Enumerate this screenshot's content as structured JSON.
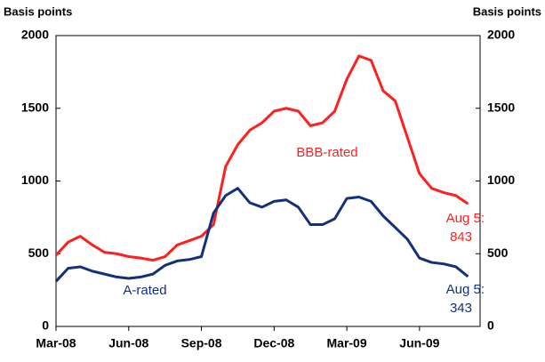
{
  "chart_data": {
    "type": "line",
    "y_label": "Basis points",
    "y2_label": "Basis points",
    "xlim": [
      0,
      17.5
    ],
    "xticks": [
      {
        "value": 0,
        "label": "Mar-08"
      },
      {
        "value": 3,
        "label": "Jun-08"
      },
      {
        "value": 6,
        "label": "Sep-08"
      },
      {
        "value": 9,
        "label": "Dec-08"
      },
      {
        "value": 12,
        "label": "Mar-09"
      },
      {
        "value": 15,
        "label": "Jun-09"
      }
    ],
    "ylim": [
      0,
      2000
    ],
    "yticks": [
      0,
      500,
      1000,
      1500,
      2000
    ],
    "y2lim": [
      0,
      2000
    ],
    "y2ticks": [
      0,
      500,
      1000,
      1500,
      2000
    ],
    "x": [
      0,
      0.5,
      1,
      1.5,
      2,
      2.5,
      3,
      3.5,
      4,
      4.5,
      5,
      5.5,
      6,
      6.5,
      7,
      7.5,
      8,
      8.5,
      9,
      9.5,
      10,
      10.5,
      11,
      11.5,
      12,
      12.5,
      13,
      13.5,
      14,
      14.5,
      15,
      15.5,
      16,
      16.5,
      17
    ],
    "series": [
      {
        "name": "BBB-rated",
        "color": "#ff1f1f",
        "values": [
          490,
          580,
          620,
          560,
          510,
          500,
          480,
          470,
          455,
          480,
          560,
          590,
          620,
          700,
          1100,
          1250,
          1350,
          1400,
          1480,
          1500,
          1480,
          1380,
          1400,
          1480,
          1700,
          1860,
          1830,
          1620,
          1550,
          1300,
          1050,
          950,
          920,
          900,
          843
        ]
      },
      {
        "name": "A-rated",
        "color": "#14307a",
        "values": [
          310,
          400,
          410,
          380,
          360,
          340,
          330,
          340,
          360,
          420,
          450,
          460,
          480,
          780,
          900,
          950,
          850,
          820,
          860,
          870,
          820,
          700,
          700,
          740,
          880,
          890,
          860,
          760,
          680,
          600,
          470,
          440,
          430,
          410,
          343
        ]
      }
    ],
    "annotations": [
      "Aug 5:",
      "Aug 5:"
    ]
  }
}
